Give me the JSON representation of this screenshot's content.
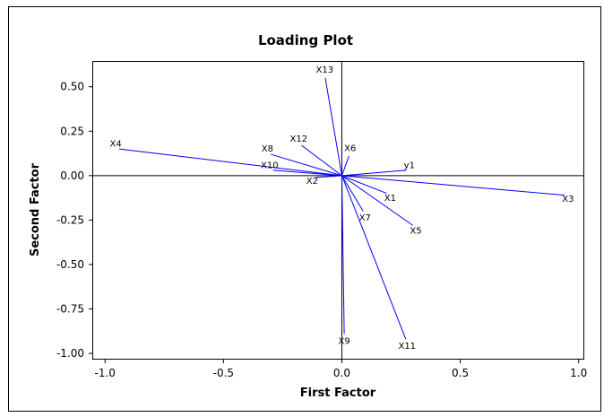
{
  "chart_data": {
    "type": "loading",
    "title": "Loading Plot",
    "xlabel": "First Factor",
    "ylabel": "Second Factor",
    "xlim": [
      -1.05,
      1.02
    ],
    "ylim": [
      -1.03,
      0.64
    ],
    "xticks": [
      -1.0,
      -0.5,
      0.0,
      0.5,
      1.0
    ],
    "xtick_labels": [
      "-1.0",
      "-0.5",
      "0.0",
      "0.5",
      "1.0"
    ],
    "yticks": [
      0.5,
      0.25,
      0.0,
      -0.25,
      -0.5,
      -0.75,
      -1.0
    ],
    "ytick_labels": [
      "0.50",
      "0.25",
      "0.00",
      "-0.25",
      "-0.50",
      "-0.75",
      "-1.00"
    ],
    "reference_lines": {
      "x": 0,
      "y": 0
    },
    "line_color": "#0000ff",
    "points": [
      {
        "label": "X13",
        "x": -0.07,
        "y": 0.55
      },
      {
        "label": "X4",
        "x": -0.94,
        "y": 0.15
      },
      {
        "label": "X12",
        "x": -0.17,
        "y": 0.17
      },
      {
        "label": "X6",
        "x": 0.03,
        "y": 0.11
      },
      {
        "label": "X8",
        "x": -0.3,
        "y": 0.12
      },
      {
        "label": "X10",
        "x": -0.29,
        "y": 0.03
      },
      {
        "label": "X2",
        "x": -0.11,
        "y": -0.01
      },
      {
        "label": "y1",
        "x": 0.27,
        "y": 0.03
      },
      {
        "label": "X3",
        "x": 0.94,
        "y": -0.11
      },
      {
        "label": "X1",
        "x": 0.19,
        "y": -0.1
      },
      {
        "label": "X7",
        "x": 0.09,
        "y": -0.2
      },
      {
        "label": "X5",
        "x": 0.3,
        "y": -0.28
      },
      {
        "label": "X9",
        "x": 0.01,
        "y": -0.89
      },
      {
        "label": "X11",
        "x": 0.27,
        "y": -0.92
      }
    ]
  }
}
